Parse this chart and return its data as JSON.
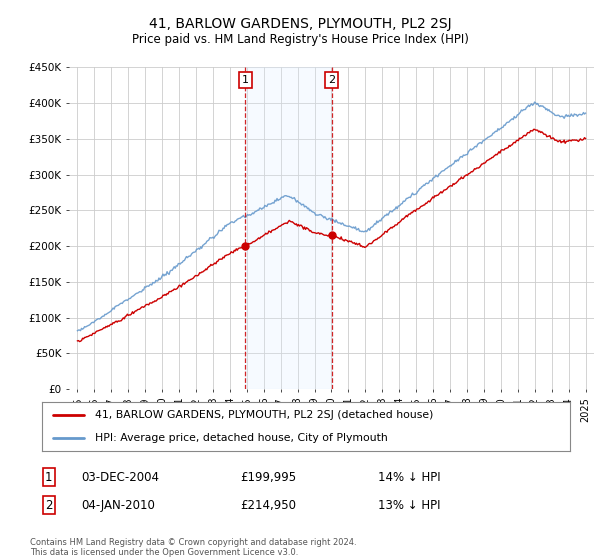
{
  "title": "41, BARLOW GARDENS, PLYMOUTH, PL2 2SJ",
  "subtitle": "Price paid vs. HM Land Registry's House Price Index (HPI)",
  "legend_line1": "41, BARLOW GARDENS, PLYMOUTH, PL2 2SJ (detached house)",
  "legend_line2": "HPI: Average price, detached house, City of Plymouth",
  "annotation1_label": "1",
  "annotation1_date": "03-DEC-2004",
  "annotation1_price": "£199,995",
  "annotation1_hpi": "14% ↓ HPI",
  "annotation2_label": "2",
  "annotation2_date": "04-JAN-2010",
  "annotation2_price": "£214,950",
  "annotation2_hpi": "13% ↓ HPI",
  "footer": "Contains HM Land Registry data © Crown copyright and database right 2024.\nThis data is licensed under the Open Government Licence v3.0.",
  "sale1_x": 2004.92,
  "sale1_y": 199995,
  "sale2_x": 2010.01,
  "sale2_y": 214950,
  "vline1_x": 2004.92,
  "vline2_x": 2010.01,
  "ylim_min": 0,
  "ylim_max": 450000,
  "xlim_min": 1994.5,
  "xlim_max": 2025.5,
  "line_color_red": "#cc0000",
  "line_color_blue": "#6699cc",
  "vline_color": "#cc0000",
  "shade_color": "#ddeeff",
  "background_color": "#ffffff",
  "plot_bg_color": "#ffffff",
  "grid_color": "#cccccc",
  "yticks": [
    0,
    50000,
    100000,
    150000,
    200000,
    250000,
    300000,
    350000,
    400000,
    450000
  ],
  "ytick_labels": [
    "£0",
    "£50K",
    "£100K",
    "£150K",
    "£200K",
    "£250K",
    "£300K",
    "£350K",
    "£400K",
    "£450K"
  ],
  "xticks": [
    1995,
    1996,
    1997,
    1998,
    1999,
    2000,
    2001,
    2002,
    2003,
    2004,
    2005,
    2006,
    2007,
    2008,
    2009,
    2010,
    2011,
    2012,
    2013,
    2014,
    2015,
    2016,
    2017,
    2018,
    2019,
    2020,
    2021,
    2022,
    2023,
    2024,
    2025
  ]
}
